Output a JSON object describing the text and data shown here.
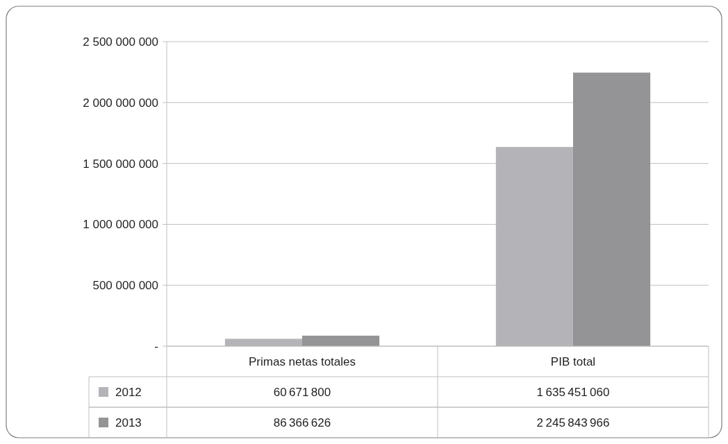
{
  "chart_data": {
    "type": "bar",
    "categories": [
      "Primas netas totales",
      "PIB total"
    ],
    "series": [
      {
        "name": "2012",
        "color": "#b4b4b8",
        "values": [
          60671800,
          1635451060
        ]
      },
      {
        "name": "2013",
        "color": "#949497",
        "values": [
          86366626,
          2245843966
        ]
      }
    ],
    "ylim": [
      0,
      2500000000
    ],
    "yticks": [
      {
        "value": 0,
        "label": "-"
      },
      {
        "value": 500000000,
        "label": "500 000 000"
      },
      {
        "value": 1000000000,
        "label": "1 000 000 000"
      },
      {
        "value": 1500000000,
        "label": "1 500 000 000"
      },
      {
        "value": 2000000000,
        "label": "2 000 000 000"
      },
      {
        "value": 2500000000,
        "label": "2 500 000 000"
      }
    ],
    "grid": "y",
    "legend": "bottom",
    "data_labels": true
  }
}
